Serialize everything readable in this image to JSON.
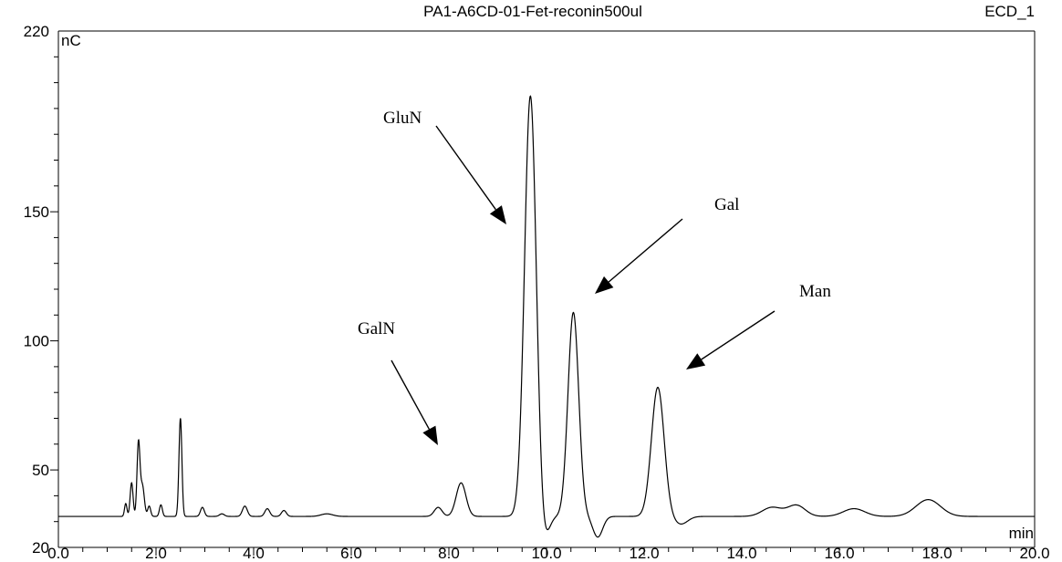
{
  "chart_data": {
    "type": "line",
    "title": "PA1-A6CD-01-Fet-reconin500ul",
    "channel": "ECD_1",
    "xlabel": "min",
    "ylabel": "nC",
    "xlim": [
      0.0,
      20.0
    ],
    "ylim": [
      20,
      220
    ],
    "x_ticks": [
      "0.0",
      "2.0",
      "4.0",
      "6.0",
      "8.0",
      "10.0",
      "12.0",
      "14.0",
      "16.0",
      "18.0",
      "20.0"
    ],
    "y_ticks": [
      "20",
      "50",
      "100",
      "150",
      "220"
    ],
    "baseline": 32,
    "series": [
      {
        "peaks": [
          [
            1.38,
            37.0,
            0.025
          ],
          [
            1.5,
            45.0,
            0.03
          ],
          [
            1.64,
            60.0,
            0.03
          ],
          [
            1.72,
            44.0,
            0.04
          ],
          [
            1.86,
            36.0,
            0.03
          ],
          [
            2.1,
            36.5,
            0.03
          ],
          [
            2.5,
            70.0,
            0.03
          ],
          [
            2.95,
            35.5,
            0.04
          ],
          [
            3.35,
            33.0,
            0.05
          ],
          [
            3.82,
            36.0,
            0.05
          ],
          [
            4.28,
            35.0,
            0.05
          ],
          [
            4.62,
            34.3,
            0.05
          ],
          [
            5.5,
            33.0,
            0.12
          ],
          [
            7.78,
            35.5,
            0.08
          ],
          [
            8.25,
            45.0,
            0.1
          ],
          [
            9.67,
            195.0,
            0.12
          ],
          [
            10.55,
            111.0,
            0.11
          ],
          [
            12.28,
            82.0,
            0.13
          ],
          [
            14.62,
            35.5,
            0.2
          ],
          [
            15.12,
            36.3,
            0.18
          ],
          [
            16.3,
            35.0,
            0.22
          ],
          [
            17.82,
            38.5,
            0.25
          ]
        ],
        "dips": [
          [
            9.95,
            22.5,
            0.1
          ],
          [
            11.05,
            24.0,
            0.1
          ],
          [
            12.75,
            29.0,
            0.14
          ]
        ]
      }
    ],
    "annotations": [
      {
        "label": "GluN",
        "x": 9.67,
        "y": 195.0
      },
      {
        "label": "Gal",
        "x": 10.55,
        "y": 111.0
      },
      {
        "label": "Man",
        "x": 12.28,
        "y": 82.0
      },
      {
        "label": "GalN",
        "x": 8.25,
        "y": 45.0
      }
    ]
  }
}
